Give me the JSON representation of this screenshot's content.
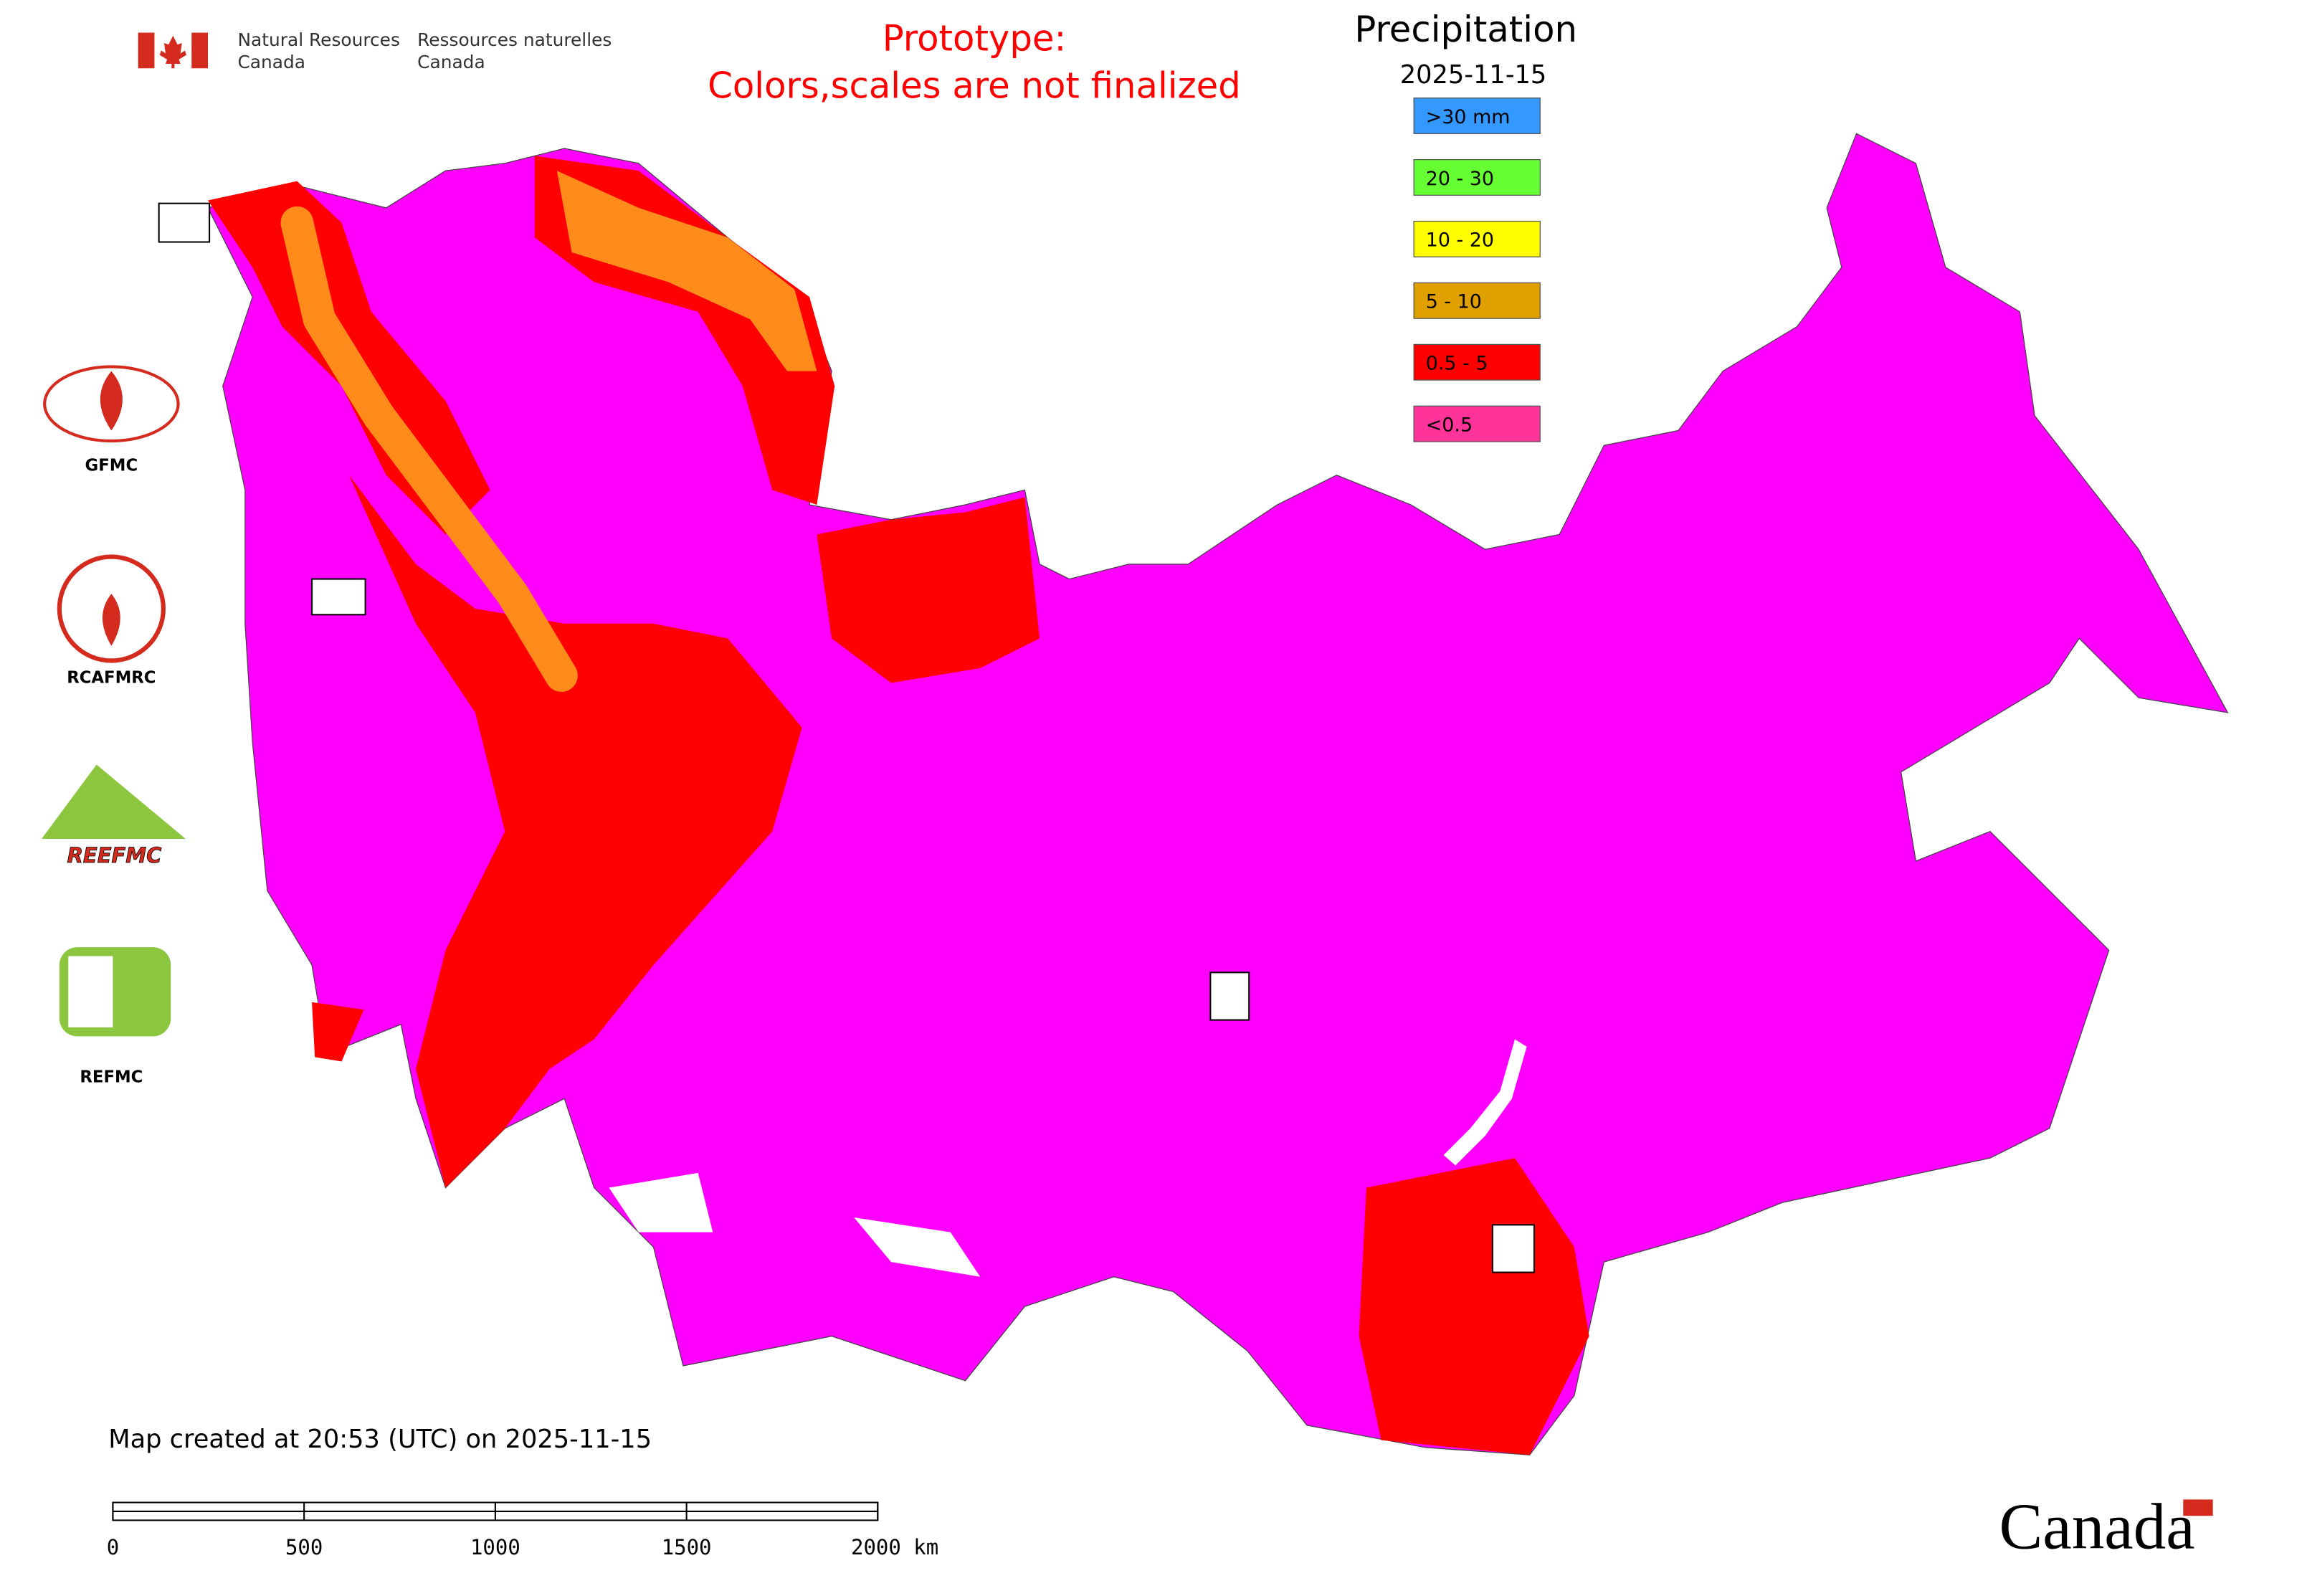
{
  "header": {
    "english": [
      "Natural Resources",
      "Canada"
    ],
    "french": [
      "Ressources naturelles",
      "Canada"
    ]
  },
  "notice": [
    "Prototype:",
    "Colors,scales are not finalized"
  ],
  "legend": {
    "title": "Precipitation",
    "date": "2025-11-15",
    "items": [
      {
        "label": ">30 mm",
        "color": "#3399ff"
      },
      {
        "label": "20 - 30",
        "color": "#66ff33"
      },
      {
        "label": "10 - 20",
        "color": "#ffff00"
      },
      {
        "label": "5 - 10",
        "color": "#e0a000"
      },
      {
        "label": "0.5 - 5",
        "color": "#ff0000"
      },
      {
        "label": "<0.5",
        "color": "#ff3399"
      }
    ]
  },
  "logos": [
    "GFMC",
    "RCAFMRC",
    "REEFMC",
    "REFMC"
  ],
  "footer": "Map created at 20:53 (UTC) on 2025-11-15",
  "scale_bar": {
    "labels": [
      "0",
      "500",
      "1000",
      "1500",
      "2000 km"
    ]
  },
  "wordmark": "Canada"
}
